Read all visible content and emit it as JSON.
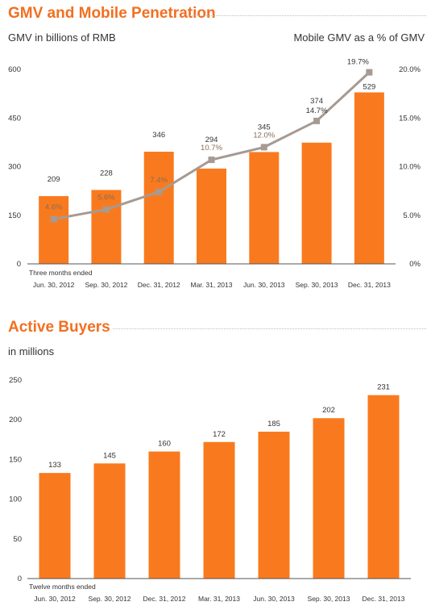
{
  "colors": {
    "accent": "#f26f21",
    "bar": "#f97a1e",
    "line": "#a69a92",
    "axis": "#333333"
  },
  "gmv_section": {
    "title": "GMV and Mobile Penetration",
    "left_subtitle": "GMV in billions of RMB",
    "right_subtitle": "Mobile GMV as a % of GMV"
  },
  "buyers_section": {
    "title": "Active Buyers",
    "subtitle": "in millions"
  },
  "chart_data": [
    {
      "type": "bar",
      "period_note": "Three months ended",
      "categories": [
        "Jun. 30, 2012",
        "Sep. 30, 2012",
        "Dec. 31, 2012",
        "Mar. 31, 2013",
        "Jun. 30, 2013",
        "Sep. 30, 2013",
        "Dec. 31, 2013"
      ],
      "series": [
        {
          "type": "bar",
          "axis": "left",
          "values": [
            209,
            228,
            346,
            294,
            345,
            374,
            529
          ],
          "labels": [
            "209",
            "228",
            "346",
            "294",
            "345",
            "374",
            "529"
          ]
        },
        {
          "type": "line",
          "axis": "right",
          "values": [
            4.6,
            5.6,
            7.4,
            10.7,
            12.0,
            14.7,
            19.7
          ],
          "labels": [
            "4.6%",
            "5.6%",
            "7.4%",
            "10.7%",
            "12.0%",
            "14.7%",
            "19.7%"
          ]
        }
      ],
      "ylim": [
        0,
        600
      ],
      "yticks": [
        "0",
        "150",
        "300",
        "450",
        "600"
      ],
      "y2lim": [
        0,
        20
      ],
      "y2ticks": [
        "0%",
        "5.0%",
        "10.0%",
        "15.0%",
        "20.0%"
      ],
      "grid": false
    },
    {
      "type": "bar",
      "period_note": "Twelve months ended",
      "categories": [
        "Jun. 30, 2012",
        "Sep. 30, 2012",
        "Dec. 31, 2012",
        "Mar. 31, 2013",
        "Jun. 30, 2013",
        "Sep. 30, 2013",
        "Dec. 31, 2013"
      ],
      "values": [
        133,
        145,
        160,
        172,
        185,
        202,
        231
      ],
      "labels": [
        "133",
        "145",
        "160",
        "172",
        "185",
        "202",
        "231"
      ],
      "ylim": [
        0,
        250
      ],
      "yticks": [
        "0",
        "50",
        "100",
        "150",
        "200",
        "250"
      ],
      "grid": false
    }
  ]
}
